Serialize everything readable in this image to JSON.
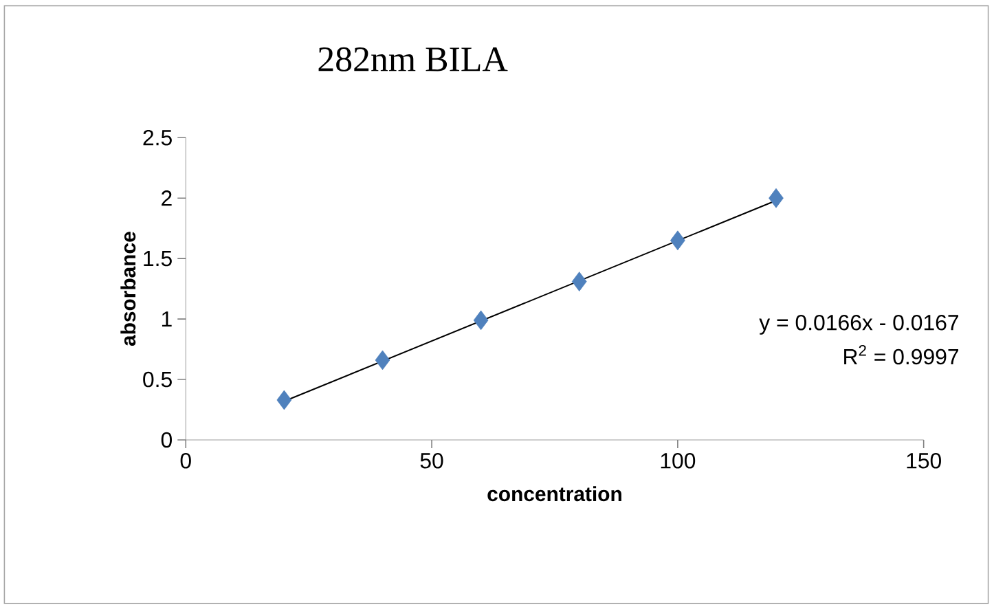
{
  "chart_data": {
    "type": "scatter",
    "title": "282nm BILA",
    "xlabel": "concentration",
    "ylabel": "absorbance",
    "xlim": [
      0,
      150
    ],
    "xticks": [
      0,
      50,
      100,
      150
    ],
    "ylim": [
      0,
      2.5
    ],
    "yticks": [
      0,
      0.5,
      1,
      1.5,
      2,
      2.5
    ],
    "marker": "diamond",
    "series": [
      {
        "color": "#4f81bd",
        "x": [
          20,
          40,
          60,
          80,
          100,
          120
        ],
        "values": [
          0.33,
          0.66,
          0.99,
          1.31,
          1.65,
          2.0
        ]
      },
      {
        "type": "line",
        "color": "#000000",
        "marker": "none",
        "x": [
          20,
          120
        ],
        "values": [
          0.32,
          1.98
        ]
      }
    ],
    "annotations": [
      "y = 0.0166x - 0.0167",
      "R$^{2}$ = 0.9997"
    ]
  }
}
